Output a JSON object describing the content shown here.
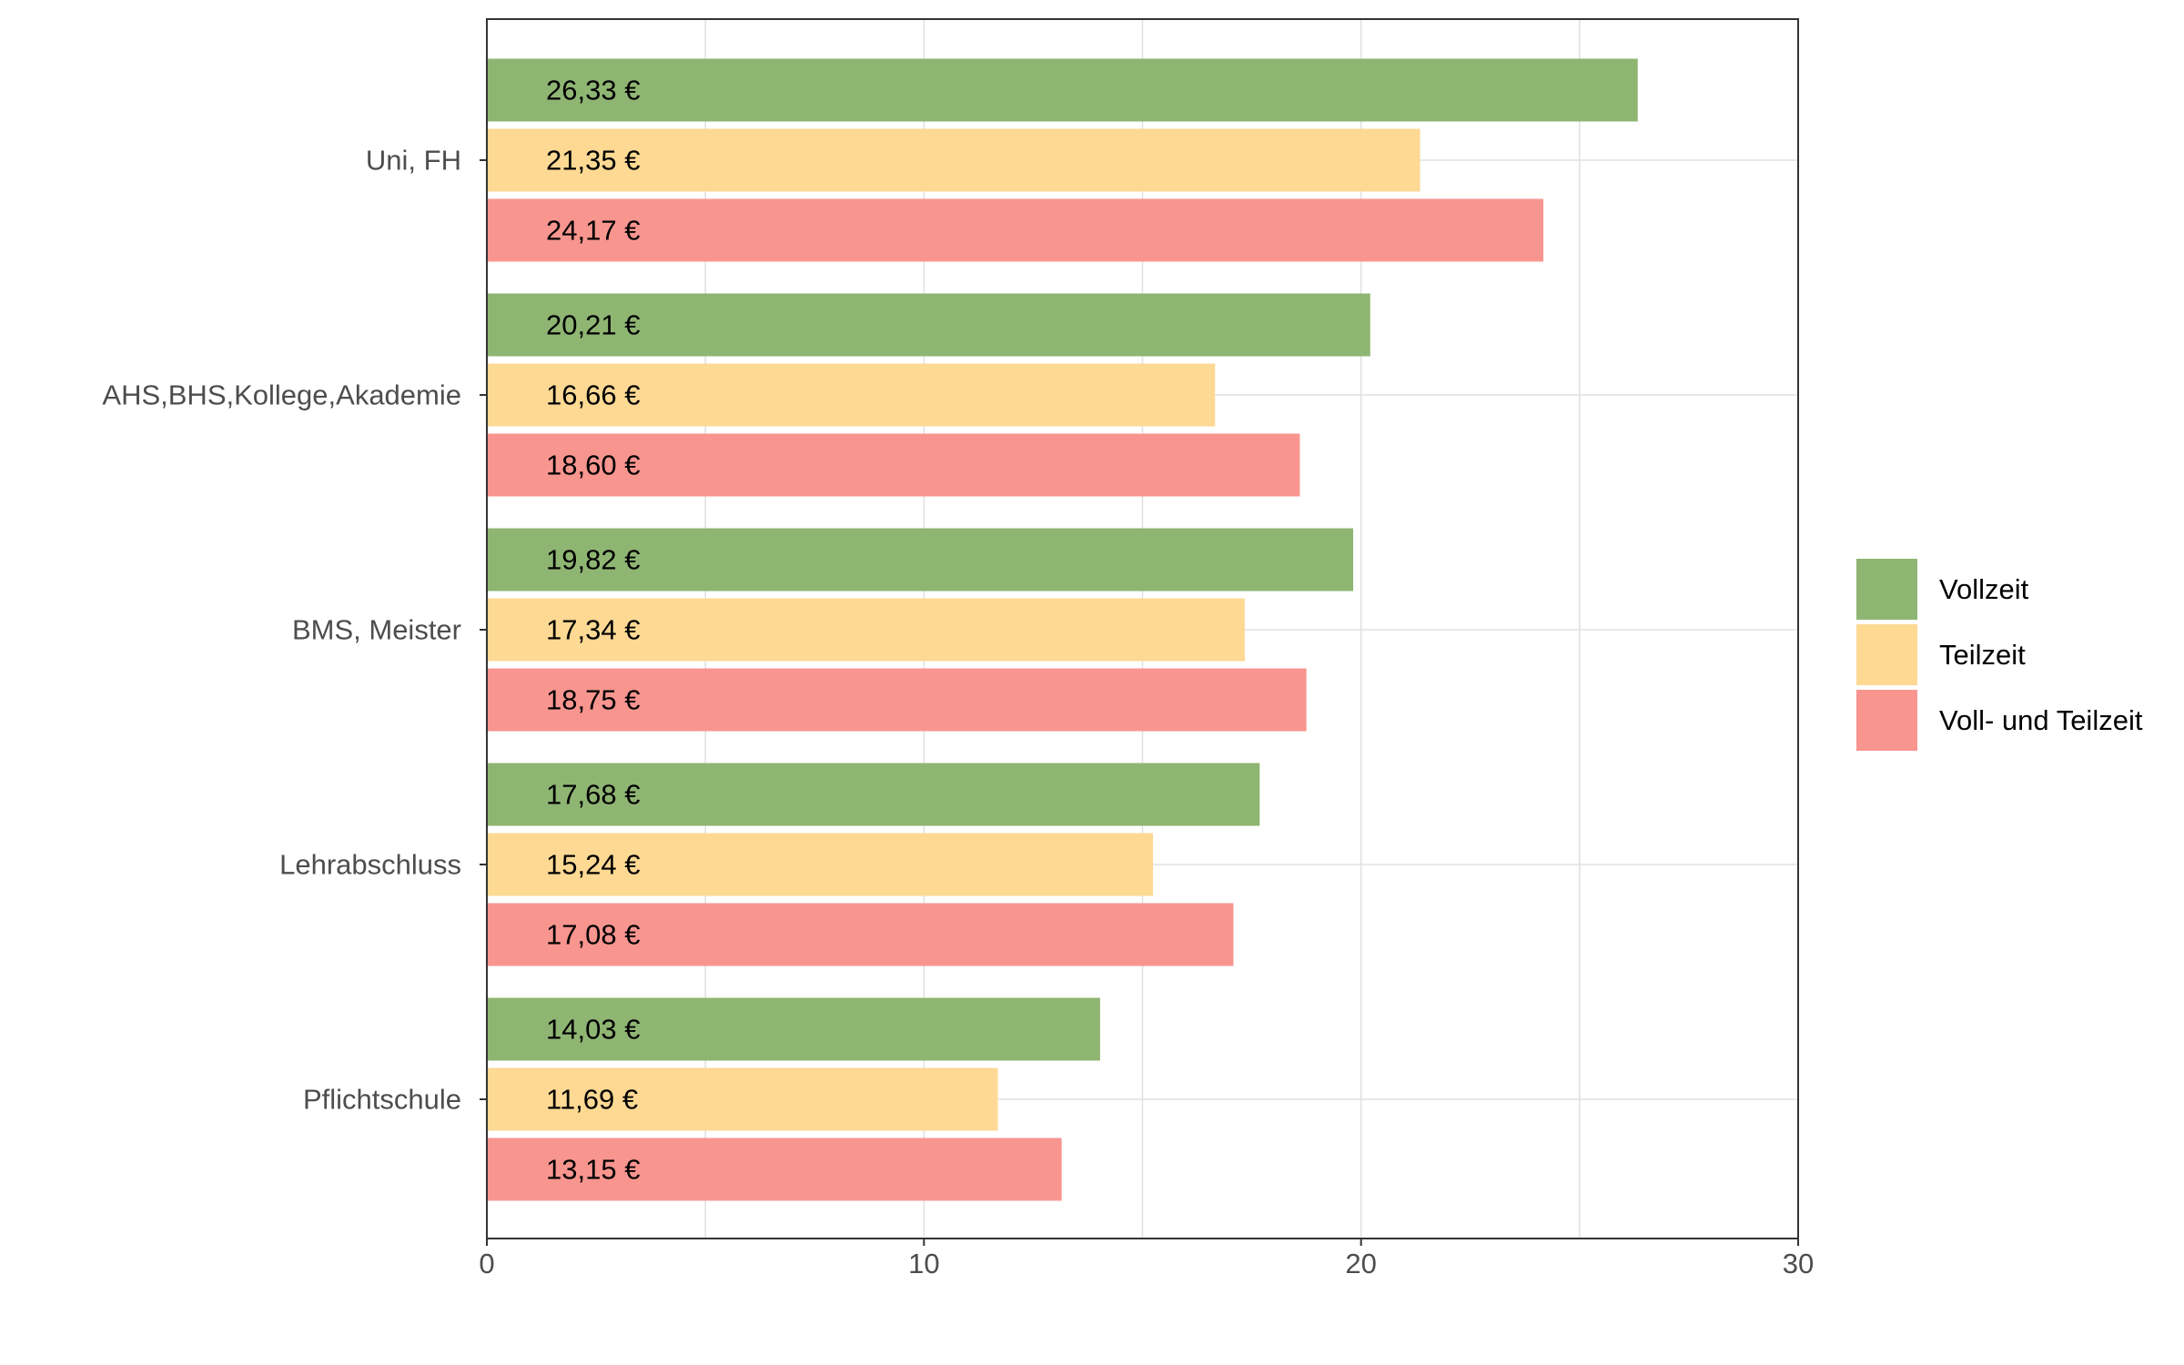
{
  "chart_data": {
    "type": "bar",
    "orientation": "horizontal",
    "title": "",
    "xlabel": "",
    "ylabel": "",
    "xlim": [
      0,
      30
    ],
    "x_ticks": [
      0,
      10,
      20,
      30
    ],
    "grid": true,
    "legend_position": "right",
    "categories": [
      "Uni, FH",
      "AHS,BHS,Kollege,Akademie",
      "BMS, Meister",
      "Lehrabschluss",
      "Pflichtschule"
    ],
    "series": [
      {
        "name": "Vollzeit",
        "color": "#8FB573",
        "values": [
          26.33,
          20.21,
          19.82,
          17.68,
          14.03
        ],
        "labels": [
          "26,33 €",
          "20,21 €",
          "19,82 €",
          "17,68 €",
          "14,03 €"
        ]
      },
      {
        "name": "Teilzeit",
        "color": "#FDD994",
        "values": [
          21.35,
          16.66,
          17.34,
          15.24,
          11.69
        ],
        "labels": [
          "21,35 €",
          "16,66 €",
          "17,34 €",
          "15,24 €",
          "11,69 €"
        ]
      },
      {
        "name": "Voll- und Teilzeit",
        "color": "#F8958F",
        "values": [
          24.17,
          18.6,
          18.75,
          17.08,
          13.15
        ],
        "labels": [
          "24,17 €",
          "18,60 €",
          "18,75 €",
          "17,08 €",
          "13,15 €"
        ]
      }
    ]
  }
}
